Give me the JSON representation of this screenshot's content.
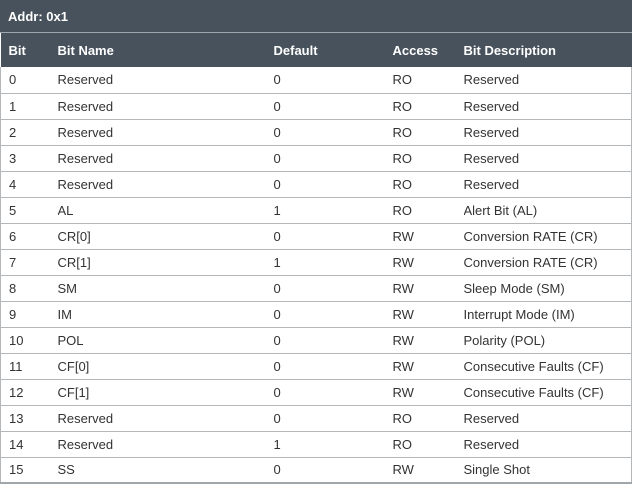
{
  "header": {
    "title": "Addr: 0x1"
  },
  "table": {
    "columns": [
      "Bit",
      "Bit Name",
      "Default",
      "Access",
      "Bit Description"
    ],
    "keys": [
      "bit",
      "name",
      "default",
      "access",
      "description"
    ],
    "rows": [
      {
        "bit": "0",
        "name": "Reserved",
        "default": "0",
        "access": "RO",
        "description": "Reserved"
      },
      {
        "bit": "1",
        "name": "Reserved",
        "default": "0",
        "access": "RO",
        "description": "Reserved"
      },
      {
        "bit": "2",
        "name": "Reserved",
        "default": "0",
        "access": "RO",
        "description": "Reserved"
      },
      {
        "bit": "3",
        "name": "Reserved",
        "default": "0",
        "access": "RO",
        "description": "Reserved"
      },
      {
        "bit": "4",
        "name": "Reserved",
        "default": "0",
        "access": "RO",
        "description": "Reserved"
      },
      {
        "bit": "5",
        "name": "AL",
        "default": "1",
        "access": "RO",
        "description": "Alert Bit (AL)"
      },
      {
        "bit": "6",
        "name": "CR[0]",
        "default": "0",
        "access": "RW",
        "description": "Conversion RATE (CR)"
      },
      {
        "bit": "7",
        "name": "CR[1]",
        "default": "1",
        "access": "RW",
        "description": "Conversion RATE (CR)"
      },
      {
        "bit": "8",
        "name": "SM",
        "default": "0",
        "access": "RW",
        "description": "Sleep Mode (SM)"
      },
      {
        "bit": "9",
        "name": "IM",
        "default": "0",
        "access": "RW",
        "description": "Interrupt Mode (IM)"
      },
      {
        "bit": "10",
        "name": "POL",
        "default": "0",
        "access": "RW",
        "description": "Polarity (POL)"
      },
      {
        "bit": "11",
        "name": "CF[0]",
        "default": "0",
        "access": "RW",
        "description": "Consecutive Faults (CF)"
      },
      {
        "bit": "12",
        "name": "CF[1]",
        "default": "0",
        "access": "RW",
        "description": "Consecutive Faults (CF)"
      },
      {
        "bit": "13",
        "name": "Reserved",
        "default": "0",
        "access": "RO",
        "description": "Reserved"
      },
      {
        "bit": "14",
        "name": "Reserved",
        "default": "1",
        "access": "RO",
        "description": "Reserved"
      },
      {
        "bit": "15",
        "name": "SS",
        "default": "0",
        "access": "RW",
        "description": "Single Shot"
      }
    ]
  },
  "colors": {
    "header_bg": "#47525c",
    "header_text": "#ffffff",
    "body_text": "#333333",
    "row_separator": "#b4b7b9",
    "divider": "#a0a7ac"
  }
}
